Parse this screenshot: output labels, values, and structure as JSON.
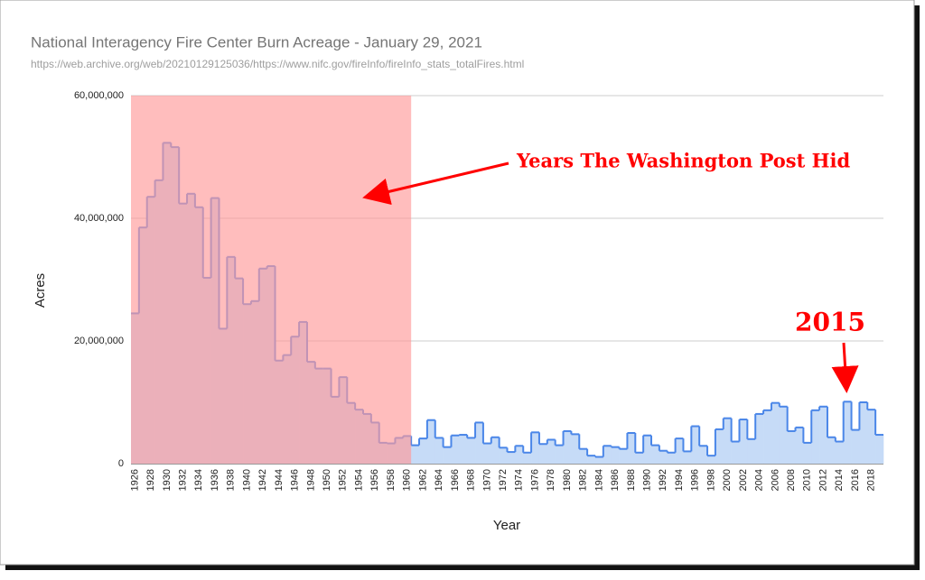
{
  "chart_data": {
    "type": "step-area",
    "title": "National Interagency Fire Center Burn Acreage - January 29, 2021",
    "subtitle": "https://web.archive.org/web/20210129125036/https://www.nifc.gov/fireInfo/fireInfo_stats_totalFires.html",
    "x_label": "Year",
    "y_label": "Acres",
    "x": [
      1926,
      1927,
      1928,
      1929,
      1930,
      1931,
      1932,
      1933,
      1934,
      1935,
      1936,
      1937,
      1938,
      1939,
      1940,
      1941,
      1942,
      1943,
      1944,
      1945,
      1946,
      1947,
      1948,
      1949,
      1950,
      1951,
      1952,
      1953,
      1954,
      1955,
      1956,
      1957,
      1958,
      1959,
      1960,
      1961,
      1962,
      1963,
      1964,
      1965,
      1966,
      1967,
      1968,
      1969,
      1970,
      1971,
      1972,
      1973,
      1974,
      1975,
      1976,
      1977,
      1978,
      1979,
      1980,
      1981,
      1982,
      1983,
      1984,
      1985,
      1986,
      1987,
      1988,
      1989,
      1990,
      1991,
      1992,
      1993,
      1994,
      1995,
      1996,
      1997,
      1998,
      1999,
      2000,
      2001,
      2002,
      2003,
      2004,
      2005,
      2006,
      2007,
      2008,
      2009,
      2010,
      2011,
      2012,
      2013,
      2014,
      2015,
      2016,
      2017,
      2018,
      2019
    ],
    "series": [
      {
        "name": "Acres",
        "color": "#4a86e8",
        "fill": "#c6dbf7",
        "values": [
          24500000,
          38500000,
          43500000,
          46200000,
          52300000,
          51600000,
          42400000,
          44000000,
          41800000,
          30300000,
          43300000,
          22000000,
          33700000,
          30200000,
          26000000,
          26500000,
          31800000,
          32200000,
          16800000,
          17700000,
          20700000,
          23100000,
          16600000,
          15500000,
          15500000,
          10900000,
          14100000,
          9900000,
          8800000,
          8100000,
          6700000,
          3400000,
          3300000,
          4200000,
          4500000,
          3000000,
          4100000,
          7100000,
          4200000,
          2700000,
          4600000,
          4700000,
          4200000,
          6700000,
          3300000,
          4300000,
          2600000,
          1900000,
          2900000,
          1800000,
          5100000,
          3200000,
          3900000,
          3000000,
          5300000,
          4800000,
          2400000,
          1300000,
          1100000,
          2900000,
          2700000,
          2400000,
          5000000,
          1800000,
          4600000,
          3000000,
          2100000,
          1800000,
          4100000,
          2000000,
          6100000,
          2900000,
          1300000,
          5600000,
          7400000,
          3600000,
          7200000,
          4000000,
          8100000,
          8700000,
          9900000,
          9300000,
          5300000,
          5900000,
          3400000,
          8700000,
          9300000,
          4300000,
          3600000,
          10100000,
          5500000,
          10000000,
          8800000,
          4700000
        ]
      }
    ],
    "xlim": [
      1926,
      2020
    ],
    "xticks": [
      1926,
      1928,
      1930,
      1932,
      1934,
      1936,
      1938,
      1940,
      1942,
      1944,
      1946,
      1948,
      1950,
      1952,
      1954,
      1956,
      1958,
      1960,
      1962,
      1964,
      1966,
      1968,
      1970,
      1972,
      1974,
      1976,
      1978,
      1980,
      1982,
      1984,
      1986,
      1988,
      1990,
      1992,
      1994,
      1996,
      1998,
      2000,
      2002,
      2004,
      2006,
      2008,
      2010,
      2012,
      2014,
      2016,
      2018
    ],
    "ylim": [
      0,
      60000000
    ],
    "yticks": [
      0,
      {
        "value": 20000000,
        "label": "20,000,000"
      },
      {
        "value": 40000000,
        "label": "40,000,000"
      },
      {
        "value": 60000000,
        "label": "60,000,000"
      }
    ],
    "grid": true,
    "highlight_years": [
      1926,
      1960
    ],
    "highlight_color": "#ff9a9a",
    "annotations": [
      {
        "text": "Years The Washington Post Hid",
        "color": "#ff0000"
      },
      {
        "text": "2015",
        "color": "#ff0000"
      }
    ]
  }
}
